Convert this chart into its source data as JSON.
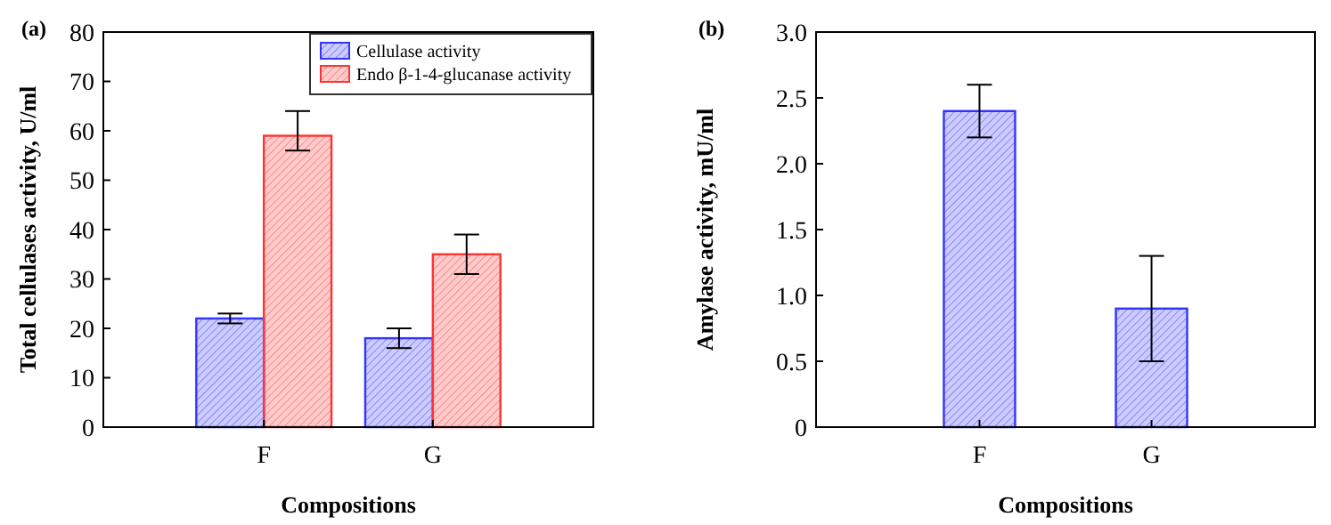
{
  "chart_data": [
    {
      "type": "bar",
      "title": "(a)",
      "xlabel": "Compositions",
      "ylabel": "Total cellulases activity, U/ml",
      "categories": [
        "F",
        "G"
      ],
      "series": [
        {
          "name": "Cellulase activity",
          "color": "#3333ff",
          "values": [
            22,
            18
          ],
          "errors": [
            [
              21,
              23
            ],
            [
              16,
              20
            ]
          ]
        },
        {
          "name": "Endo β-1-4-glucanase activity",
          "color": "#ff3333",
          "values": [
            59,
            35
          ],
          "errors": [
            [
              56,
              64
            ],
            [
              31,
              39
            ]
          ]
        }
      ],
      "ylim": [
        0,
        80
      ],
      "yticks": [
        0,
        10,
        20,
        30,
        40,
        50,
        60,
        70,
        80
      ],
      "legend": "top right",
      "grid": false
    },
    {
      "type": "bar",
      "title": "(b)",
      "xlabel": "Compositions",
      "ylabel": "Amylase activity, mU/ml",
      "categories": [
        "F",
        "G"
      ],
      "series": [
        {
          "color": "#3333ff",
          "values": [
            2.4,
            0.9
          ],
          "errors": [
            [
              2.2,
              2.6
            ],
            [
              0.5,
              1.3
            ]
          ]
        }
      ],
      "ylim": [
        0,
        3
      ],
      "yticks": [
        0,
        {
          "value": 0.5,
          "label": "0.5"
        },
        {
          "value": 1,
          "label": "1.0"
        },
        {
          "value": 1.5,
          "label": "1.5"
        },
        {
          "value": 2,
          "label": "2.0"
        },
        {
          "value": 2.5,
          "label": "2.5"
        },
        {
          "value": 3,
          "label": "3.0"
        }
      ],
      "legend": false,
      "grid": false
    }
  ]
}
